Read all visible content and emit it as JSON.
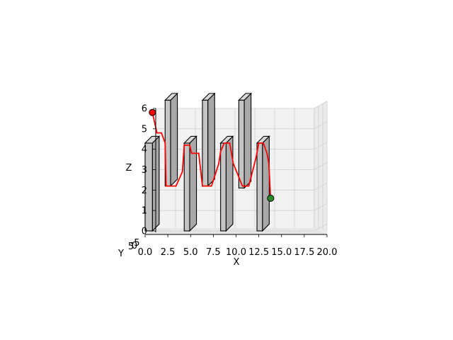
{
  "chart_data": {
    "type": "line",
    "projection": "3d",
    "title": "",
    "xlabel": "X",
    "ylabel": "Y",
    "zlabel": "Z",
    "xlim": [
      0,
      20
    ],
    "zlim": [
      0,
      6
    ],
    "x_ticks": [
      "0.0",
      "2.5",
      "5.0",
      "7.5",
      "10.0",
      "12.5",
      "15.0",
      "17.5",
      "20.0"
    ],
    "z_ticks": [
      "0",
      "1",
      "2",
      "3",
      "4",
      "5",
      "6"
    ],
    "y_tick_fragments": [
      "-5",
      "0",
      "5"
    ],
    "path": {
      "color": "#ff0000",
      "points": [
        [
          0.8,
          5.8
        ],
        [
          1.3,
          4.8
        ],
        [
          1.8,
          4.8
        ],
        [
          2.2,
          4.3
        ],
        [
          2.3,
          2.2
        ],
        [
          3.4,
          2.2
        ],
        [
          4.1,
          2.9
        ],
        [
          4.3,
          4.2
        ],
        [
          4.9,
          4.2
        ],
        [
          5.1,
          3.8
        ],
        [
          5.9,
          3.8
        ],
        [
          6.3,
          2.2
        ],
        [
          7.3,
          2.2
        ],
        [
          8.1,
          3.3
        ],
        [
          8.3,
          3.9
        ],
        [
          8.7,
          4.3
        ],
        [
          9.3,
          4.3
        ],
        [
          9.7,
          3.3
        ],
        [
          10.7,
          2.2
        ],
        [
          11.4,
          2.2
        ],
        [
          12.2,
          3.6
        ],
        [
          12.5,
          4.3
        ],
        [
          13.0,
          4.3
        ],
        [
          13.4,
          3.8
        ],
        [
          13.6,
          3.3
        ],
        [
          13.8,
          1.6
        ]
      ]
    },
    "start_point": {
      "x": 0.8,
      "z": 5.8,
      "color": "#ff0000"
    },
    "end_point": {
      "x": 13.8,
      "z": 1.6,
      "color": "#2a8a2a"
    },
    "obstacles": [
      {
        "x0": 0.0,
        "x1": 0.8,
        "z0": 0.0,
        "z1": 4.3
      },
      {
        "x0": 2.2,
        "x1": 2.8,
        "z0": 2.2,
        "z1": 6.4
      },
      {
        "x0": 4.3,
        "x1": 4.9,
        "z0": 0.0,
        "z1": 4.3
      },
      {
        "x0": 6.3,
        "x1": 6.9,
        "z0": 2.2,
        "z1": 6.4
      },
      {
        "x0": 8.3,
        "x1": 8.9,
        "z0": 0.0,
        "z1": 4.3
      },
      {
        "x0": 10.3,
        "x1": 10.9,
        "z0": 2.1,
        "z1": 6.4
      },
      {
        "x0": 12.3,
        "x1": 12.9,
        "z0": 0.0,
        "z1": 4.3
      }
    ],
    "grid": true
  }
}
